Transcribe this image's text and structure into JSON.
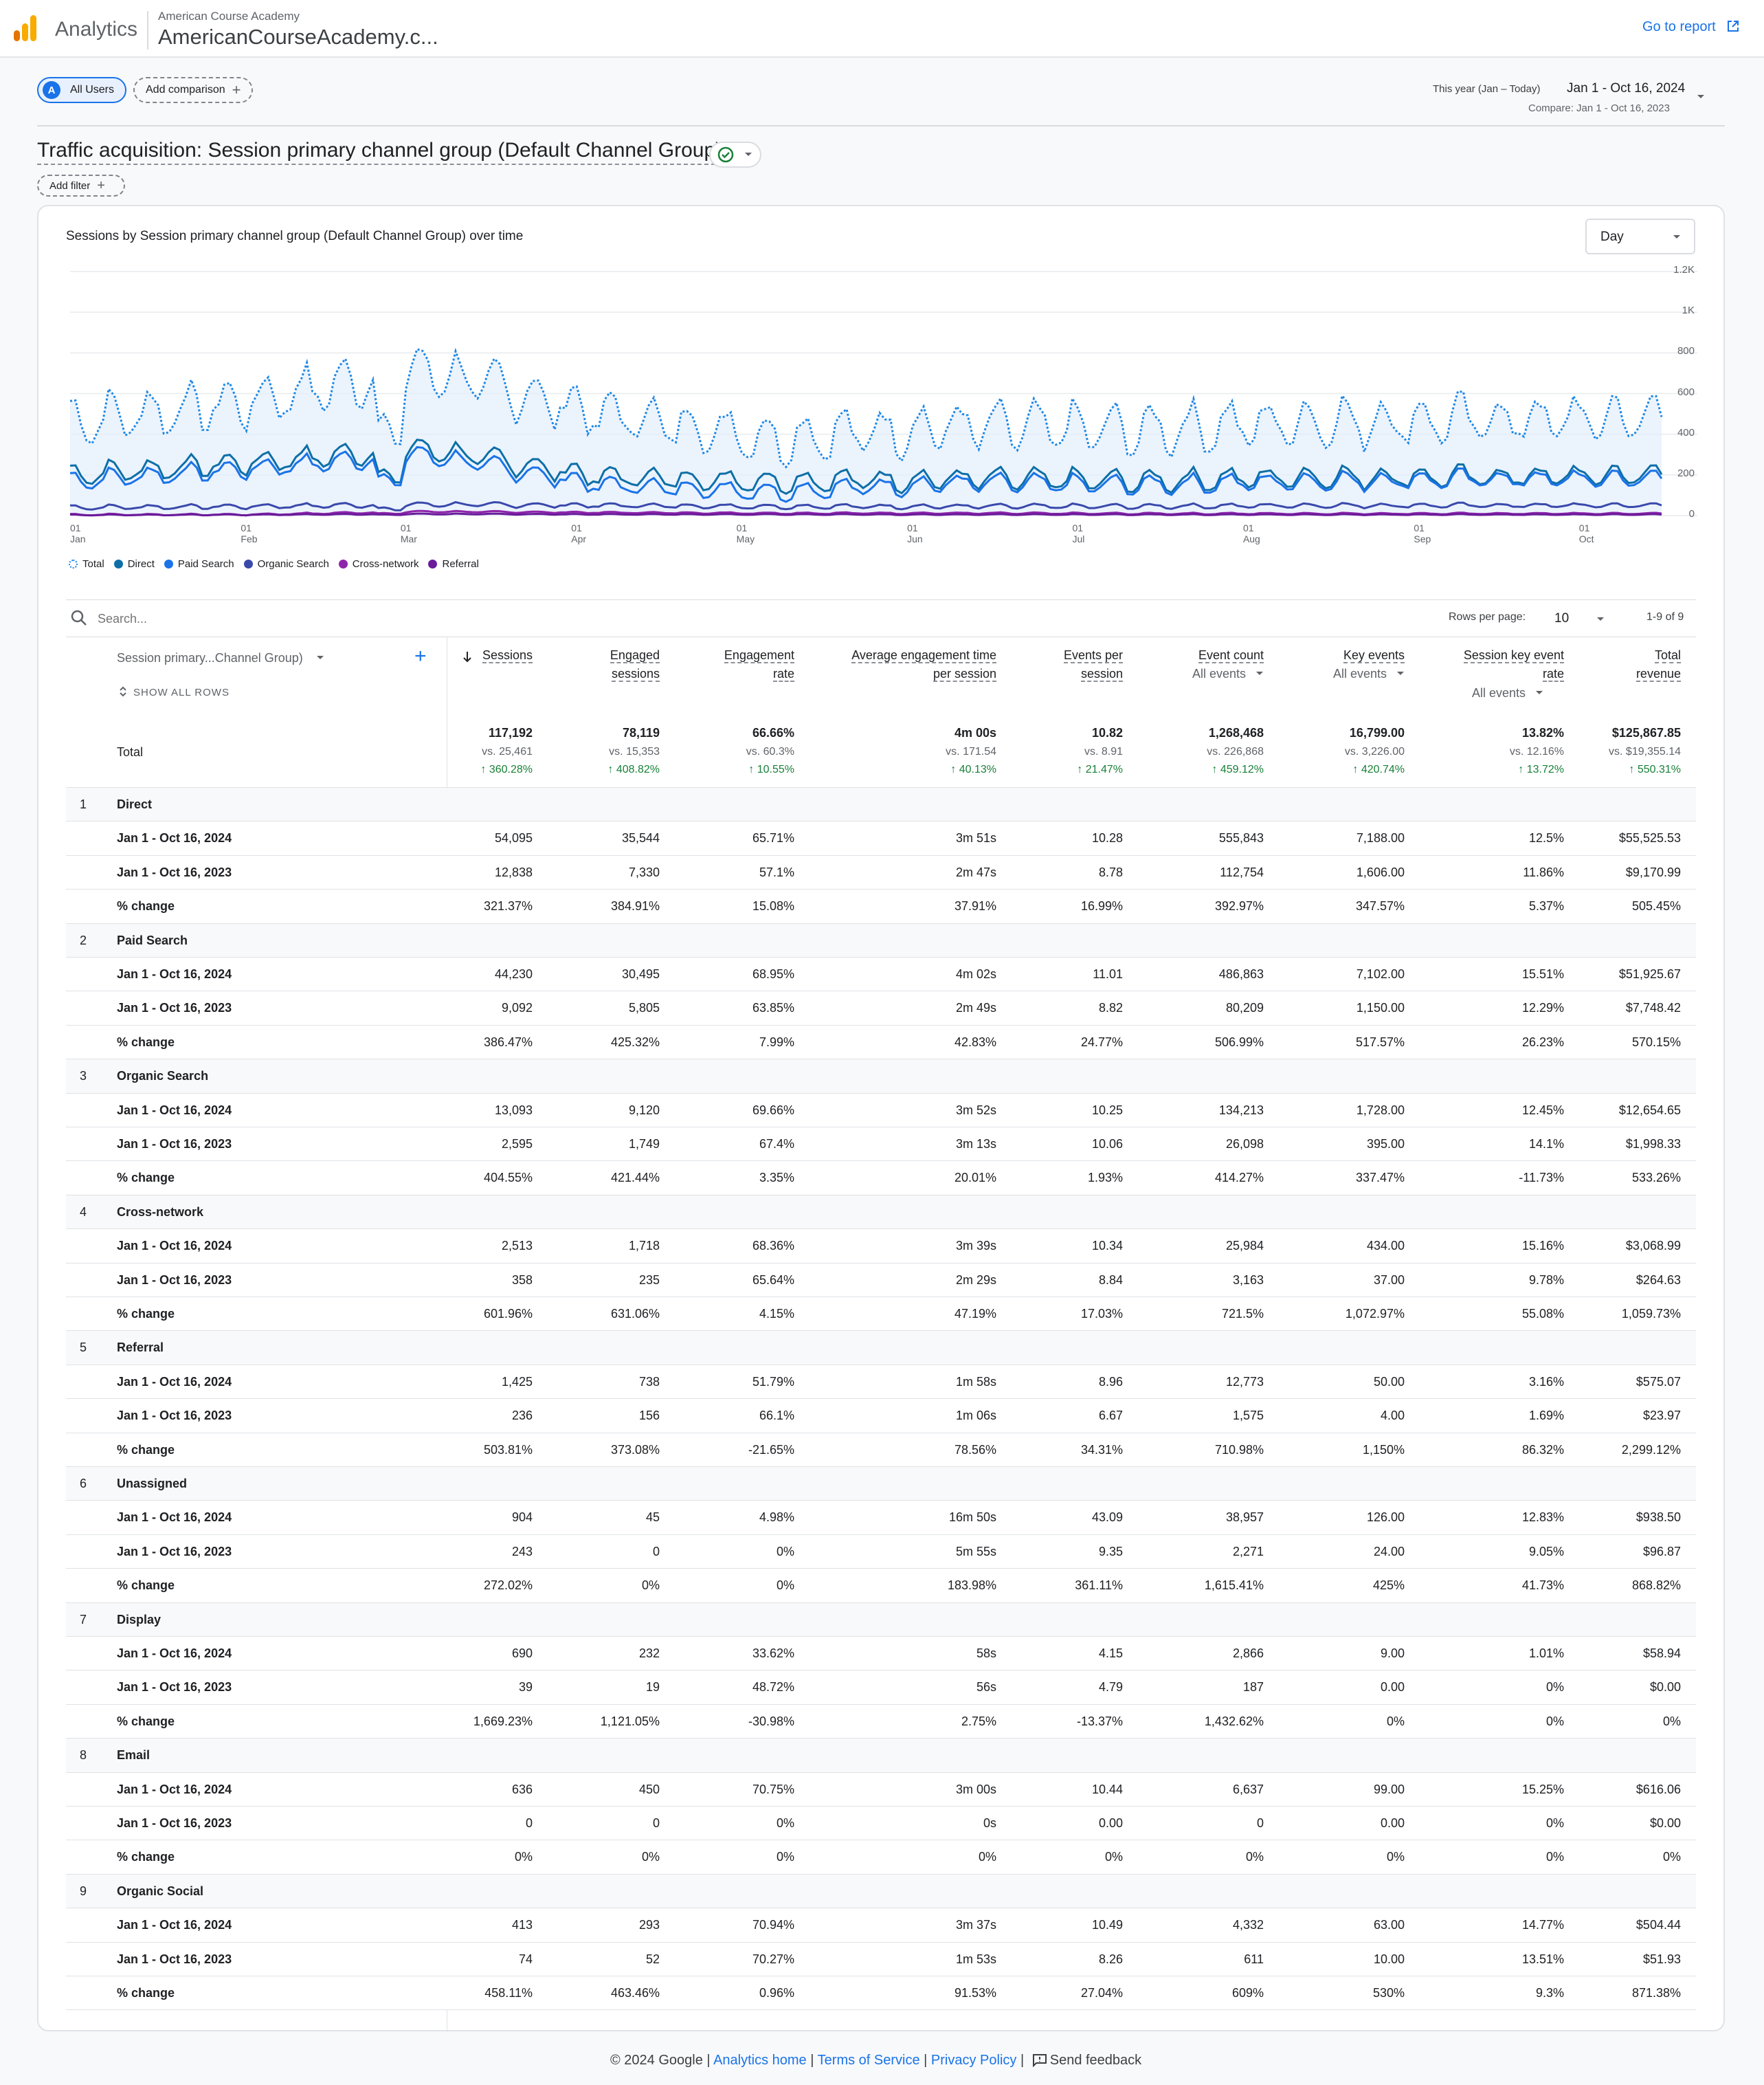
{
  "app": {
    "name": "Analytics",
    "property_account": "American Course Academy",
    "property_name": "AmericanCourseAcademy.c...",
    "goto_report": "Go to report"
  },
  "segments": {
    "avatar_letter": "A",
    "all_users": "All Users",
    "add_comparison": "Add comparison"
  },
  "date_range": {
    "preset": "This year (Jan – Today)",
    "range": "Jan 1 - Oct 16, 2024",
    "compare": "Compare: Jan 1 - Oct 16, 2023"
  },
  "report": {
    "title": "Traffic acquisition: Session primary channel group (Default Channel Group)",
    "add_filter": "Add filter"
  },
  "chart_title": "Sessions by Session primary channel group (Default Channel Group) over time",
  "granularity": "Day",
  "chart_data": {
    "type": "line",
    "y_ticks": [
      "1.2K",
      "1K",
      "800",
      "600",
      "400",
      "200",
      "0"
    ],
    "ylim": [
      0,
      1200
    ],
    "x_ticks": [
      [
        "01",
        "Jan"
      ],
      [
        "01",
        "Feb"
      ],
      [
        "01",
        "Mar"
      ],
      [
        "01",
        "Apr"
      ],
      [
        "01",
        "May"
      ],
      [
        "01",
        "Jun"
      ],
      [
        "01",
        "Jul"
      ],
      [
        "01",
        "Aug"
      ],
      [
        "01",
        "Sep"
      ],
      [
        "01",
        "Oct"
      ]
    ],
    "grid": true,
    "legend_position": "bottom-left",
    "series": [
      {
        "name": "Total",
        "color": "#1e88e5",
        "style": "dotted",
        "level_profile": [
          460,
          560,
          720,
          500,
          380,
          440,
          420,
          460,
          470,
          480
        ],
        "amplitude": 160
      },
      {
        "name": "Direct",
        "color": "#0d6fa6",
        "style": "solid",
        "level_profile": [
          200,
          260,
          330,
          190,
          170,
          180,
          170,
          190,
          190,
          200
        ],
        "amplitude": 70
      },
      {
        "name": "Paid Search",
        "color": "#1a73e8",
        "style": "solid",
        "level_profile": [
          170,
          230,
          300,
          150,
          120,
          160,
          150,
          170,
          180,
          180
        ],
        "amplitude": 60
      },
      {
        "name": "Organic Search",
        "color": "#3949ab",
        "style": "solid",
        "level_profile": [
          40,
          45,
          55,
          50,
          45,
          45,
          45,
          50,
          50,
          50
        ],
        "amplitude": 15
      },
      {
        "name": "Cross-network",
        "color": "#8e24aa",
        "style": "solid",
        "level_profile": [
          5,
          5,
          20,
          15,
          12,
          12,
          10,
          10,
          10,
          10
        ],
        "amplitude": 5
      },
      {
        "name": "Referral",
        "color": "#6a1b9a",
        "style": "solid",
        "level_profile": [
          3,
          4,
          8,
          6,
          6,
          5,
          5,
          5,
          5,
          5
        ],
        "amplitude": 3
      }
    ]
  },
  "table": {
    "search_placeholder": "Search...",
    "rows_per_page_label": "Rows per page:",
    "rows_per_page": "10",
    "pagination": "1-9 of 9",
    "dimension_header": "Session primary...Channel Group)",
    "show_all_rows": "SHOW ALL ROWS",
    "columns": [
      {
        "l1": "Sessions",
        "l2": "",
        "sub": ""
      },
      {
        "l1": "Engaged",
        "l2": "sessions",
        "sub": ""
      },
      {
        "l1": "Engagement",
        "l2": "rate",
        "sub": ""
      },
      {
        "l1": "Average engagement time",
        "l2": "per session",
        "sub": ""
      },
      {
        "l1": "Events per",
        "l2": "session",
        "sub": ""
      },
      {
        "l1": "Event count",
        "l2": "",
        "sub": "All events"
      },
      {
        "l1": "Key events",
        "l2": "",
        "sub": "All events"
      },
      {
        "l1": "Session key event",
        "l2": "rate",
        "sub": "All events"
      },
      {
        "l1": "Total",
        "l2": "revenue",
        "sub": ""
      }
    ],
    "total": {
      "label": "Total",
      "values": [
        "117,192",
        "78,119",
        "66.66%",
        "4m 00s",
        "10.82",
        "1,268,468",
        "16,799.00",
        "13.82%",
        "$125,867.85"
      ],
      "vs": [
        "vs. 25,461",
        "vs. 15,353",
        "vs. 60.3%",
        "vs. 171.54",
        "vs. 8.91",
        "vs. 226,868",
        "vs. 3,226.00",
        "vs. 12.16%",
        "vs. $19,355.14"
      ],
      "change": [
        "360.28%",
        "408.82%",
        "10.55%",
        "40.13%",
        "21.47%",
        "459.12%",
        "420.74%",
        "13.72%",
        "550.31%"
      ]
    },
    "period_labels": [
      "Jan 1 - Oct 16, 2024",
      "Jan 1 - Oct 16, 2023",
      "% change"
    ],
    "groups": [
      {
        "index": "1",
        "name": "Direct",
        "rows": [
          [
            "54,095",
            "35,544",
            "65.71%",
            "3m 51s",
            "10.28",
            "555,843",
            "7,188.00",
            "12.5%",
            "$55,525.53"
          ],
          [
            "12,838",
            "7,330",
            "57.1%",
            "2m 47s",
            "8.78",
            "112,754",
            "1,606.00",
            "11.86%",
            "$9,170.99"
          ],
          [
            "321.37%",
            "384.91%",
            "15.08%",
            "37.91%",
            "16.99%",
            "392.97%",
            "347.57%",
            "5.37%",
            "505.45%"
          ]
        ]
      },
      {
        "index": "2",
        "name": "Paid Search",
        "rows": [
          [
            "44,230",
            "30,495",
            "68.95%",
            "4m 02s",
            "11.01",
            "486,863",
            "7,102.00",
            "15.51%",
            "$51,925.67"
          ],
          [
            "9,092",
            "5,805",
            "63.85%",
            "2m 49s",
            "8.82",
            "80,209",
            "1,150.00",
            "12.29%",
            "$7,748.42"
          ],
          [
            "386.47%",
            "425.32%",
            "7.99%",
            "42.83%",
            "24.77%",
            "506.99%",
            "517.57%",
            "26.23%",
            "570.15%"
          ]
        ]
      },
      {
        "index": "3",
        "name": "Organic Search",
        "rows": [
          [
            "13,093",
            "9,120",
            "69.66%",
            "3m 52s",
            "10.25",
            "134,213",
            "1,728.00",
            "12.45%",
            "$12,654.65"
          ],
          [
            "2,595",
            "1,749",
            "67.4%",
            "3m 13s",
            "10.06",
            "26,098",
            "395.00",
            "14.1%",
            "$1,998.33"
          ],
          [
            "404.55%",
            "421.44%",
            "3.35%",
            "20.01%",
            "1.93%",
            "414.27%",
            "337.47%",
            "-11.73%",
            "533.26%"
          ]
        ]
      },
      {
        "index": "4",
        "name": "Cross-network",
        "rows": [
          [
            "2,513",
            "1,718",
            "68.36%",
            "3m 39s",
            "10.34",
            "25,984",
            "434.00",
            "15.16%",
            "$3,068.99"
          ],
          [
            "358",
            "235",
            "65.64%",
            "2m 29s",
            "8.84",
            "3,163",
            "37.00",
            "9.78%",
            "$264.63"
          ],
          [
            "601.96%",
            "631.06%",
            "4.15%",
            "47.19%",
            "17.03%",
            "721.5%",
            "1,072.97%",
            "55.08%",
            "1,059.73%"
          ]
        ]
      },
      {
        "index": "5",
        "name": "Referral",
        "rows": [
          [
            "1,425",
            "738",
            "51.79%",
            "1m 58s",
            "8.96",
            "12,773",
            "50.00",
            "3.16%",
            "$575.07"
          ],
          [
            "236",
            "156",
            "66.1%",
            "1m 06s",
            "6.67",
            "1,575",
            "4.00",
            "1.69%",
            "$23.97"
          ],
          [
            "503.81%",
            "373.08%",
            "-21.65%",
            "78.56%",
            "34.31%",
            "710.98%",
            "1,150%",
            "86.32%",
            "2,299.12%"
          ]
        ]
      },
      {
        "index": "6",
        "name": "Unassigned",
        "rows": [
          [
            "904",
            "45",
            "4.98%",
            "16m 50s",
            "43.09",
            "38,957",
            "126.00",
            "12.83%",
            "$938.50"
          ],
          [
            "243",
            "0",
            "0%",
            "5m 55s",
            "9.35",
            "2,271",
            "24.00",
            "9.05%",
            "$96.87"
          ],
          [
            "272.02%",
            "0%",
            "0%",
            "183.98%",
            "361.11%",
            "1,615.41%",
            "425%",
            "41.73%",
            "868.82%"
          ]
        ]
      },
      {
        "index": "7",
        "name": "Display",
        "rows": [
          [
            "690",
            "232",
            "33.62%",
            "58s",
            "4.15",
            "2,866",
            "9.00",
            "1.01%",
            "$58.94"
          ],
          [
            "39",
            "19",
            "48.72%",
            "56s",
            "4.79",
            "187",
            "0.00",
            "0%",
            "$0.00"
          ],
          [
            "1,669.23%",
            "1,121.05%",
            "-30.98%",
            "2.75%",
            "-13.37%",
            "1,432.62%",
            "0%",
            "0%",
            "0%"
          ]
        ]
      },
      {
        "index": "8",
        "name": "Email",
        "rows": [
          [
            "636",
            "450",
            "70.75%",
            "3m 00s",
            "10.44",
            "6,637",
            "99.00",
            "15.25%",
            "$616.06"
          ],
          [
            "0",
            "0",
            "0%",
            "0s",
            "0.00",
            "0",
            "0.00",
            "0%",
            "$0.00"
          ],
          [
            "0%",
            "0%",
            "0%",
            "0%",
            "0%",
            "0%",
            "0%",
            "0%",
            "0%"
          ]
        ]
      },
      {
        "index": "9",
        "name": "Organic Social",
        "rows": [
          [
            "413",
            "293",
            "70.94%",
            "3m 37s",
            "10.49",
            "4,332",
            "63.00",
            "14.77%",
            "$504.44"
          ],
          [
            "74",
            "52",
            "70.27%",
            "1m 53s",
            "8.26",
            "611",
            "10.00",
            "13.51%",
            "$51.93"
          ],
          [
            "458.11%",
            "463.46%",
            "0.96%",
            "91.53%",
            "27.04%",
            "609%",
            "530%",
            "9.3%",
            "871.38%"
          ]
        ]
      }
    ]
  },
  "footer": {
    "copyright": "© 2024 Google",
    "analytics_home": "Analytics home",
    "terms": "Terms of Service",
    "privacy": "Privacy Policy",
    "feedback": "Send feedback",
    "sep": "|"
  }
}
